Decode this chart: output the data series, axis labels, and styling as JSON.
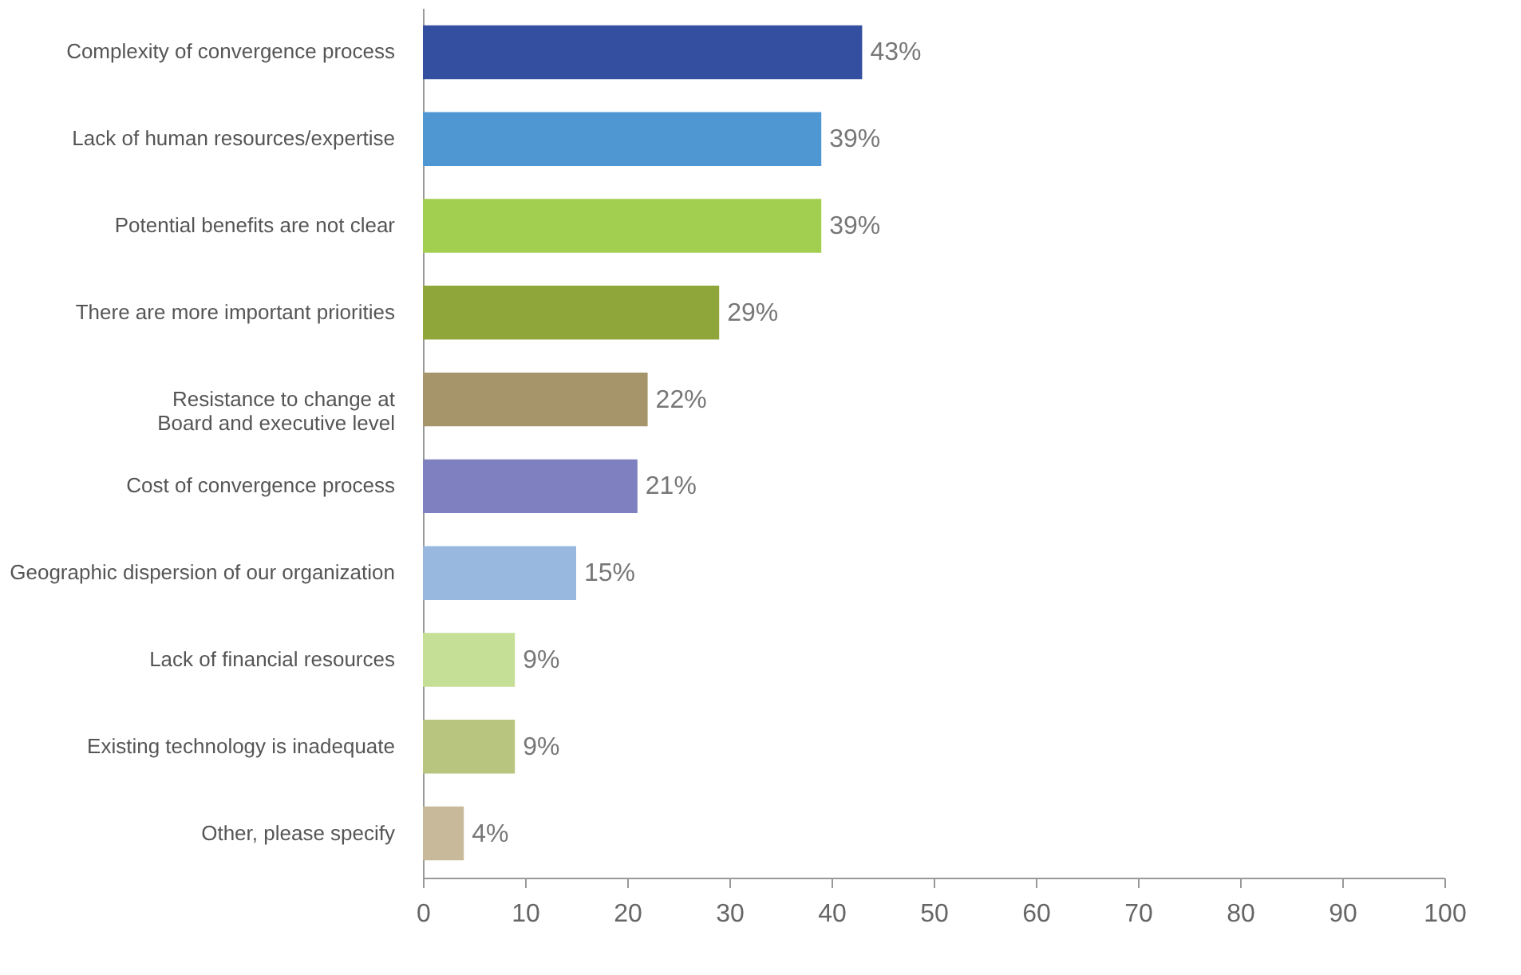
{
  "chart_data": {
    "type": "bar",
    "orientation": "horizontal",
    "categories": [
      "Complexity of convergence process",
      "Lack of human resources/expertise",
      "Potential benefits are not clear",
      "There are more important priorities",
      "Resistance to change at\nBoard and executive level",
      "Cost of convergence process",
      "Geographic dispersion of our organization",
      "Lack of financial resources",
      "Existing technology is inadequate",
      "Other, please specify"
    ],
    "values": [
      43,
      39,
      39,
      29,
      22,
      21,
      15,
      9,
      9,
      4
    ],
    "value_labels": [
      "43%",
      "39%",
      "39%",
      "29%",
      "22%",
      "21%",
      "15%",
      "9%",
      "9%",
      "4%"
    ],
    "colors": [
      "#344ea0",
      "#4f97d3",
      "#a3cf50",
      "#8fa63b",
      "#a6956a",
      "#7e80c0",
      "#98b8e0",
      "#c6df96",
      "#b8c57f",
      "#c8b99a"
    ],
    "xlim": [
      0,
      100
    ],
    "xticks": [
      0,
      10,
      20,
      30,
      40,
      50,
      60,
      70,
      80,
      90,
      100
    ],
    "grid": false
  }
}
